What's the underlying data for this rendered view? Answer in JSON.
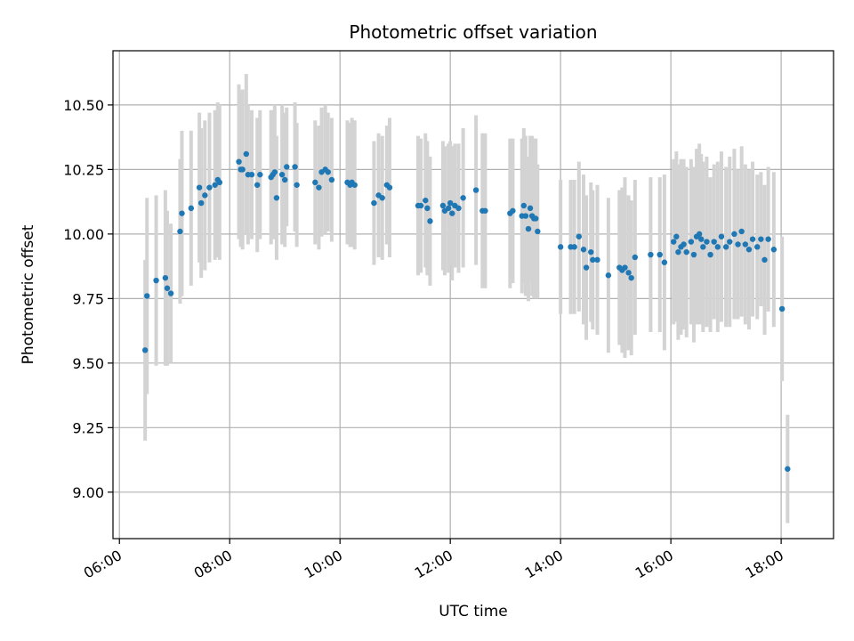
{
  "chart_data": {
    "type": "scatter",
    "title": "Photometric offset variation",
    "xlabel": "UTC time",
    "ylabel": "Photometric offset",
    "xlim": [
      "05:53",
      "18:57"
    ],
    "ylim": [
      8.82,
      10.71
    ],
    "x_ticks": [
      "06:00",
      "08:00",
      "10:00",
      "12:00",
      "14:00",
      "16:00",
      "18:00"
    ],
    "y_ticks": [
      "9.00",
      "9.25",
      "9.50",
      "9.75",
      "10.00",
      "10.25",
      "10.50"
    ],
    "grid": true,
    "colors": {
      "points": "#1f77b4",
      "errorbars": "#d3d3d3",
      "grid": "#b0b0b0"
    },
    "series": [
      {
        "x": [
          "06:28",
          "06:30",
          "06:40",
          "06:50",
          "06:52",
          "06:56",
          "07:06",
          "07:08",
          "07:18",
          "07:27",
          "07:29",
          "07:33",
          "07:38",
          "07:44",
          "07:47",
          "07:49",
          "08:10",
          "08:12",
          "08:14",
          "08:18",
          "08:20",
          "08:24",
          "08:30",
          "08:33",
          "08:45",
          "08:47",
          "08:49",
          "08:51",
          "08:57",
          "09:00",
          "09:02",
          "09:11",
          "09:13",
          "09:33",
          "09:37",
          "09:40",
          "09:44",
          "09:47",
          "09:51",
          "10:08",
          "10:11",
          "10:13",
          "10:16",
          "10:37",
          "10:42",
          "10:46",
          "10:51",
          "10:54",
          "11:25",
          "11:28",
          "11:33",
          "11:35",
          "11:38",
          "11:52",
          "11:54",
          "11:58",
          "12:00",
          "12:02",
          "12:05",
          "12:09",
          "12:14",
          "12:28",
          "12:35",
          "12:38",
          "13:05",
          "13:08",
          "13:18",
          "13:20",
          "13:22",
          "13:25",
          "13:27",
          "13:29",
          "13:31",
          "13:33",
          "13:35",
          "14:00",
          "14:11",
          "14:15",
          "14:20",
          "14:25",
          "14:28",
          "14:33",
          "14:35",
          "14:40",
          "14:52",
          "15:04",
          "15:07",
          "15:10",
          "15:14",
          "15:17",
          "15:21",
          "15:38",
          "15:48",
          "15:53",
          "16:03",
          "16:06",
          "16:08",
          "16:11",
          "16:14",
          "16:17",
          "16:22",
          "16:25",
          "16:28",
          "16:31",
          "16:33",
          "16:35",
          "16:39",
          "16:43",
          "16:47",
          "16:51",
          "16:55",
          "17:00",
          "17:04",
          "17:09",
          "17:13",
          "17:17",
          "17:21",
          "17:25",
          "17:29",
          "17:34",
          "17:38",
          "17:42",
          "17:46",
          "17:52",
          "18:01",
          "18:07"
        ],
        "y": [
          9.55,
          9.76,
          9.82,
          9.83,
          9.79,
          9.77,
          10.01,
          10.08,
          10.1,
          10.18,
          10.12,
          10.15,
          10.18,
          10.19,
          10.21,
          10.2,
          10.28,
          10.25,
          10.25,
          10.31,
          10.23,
          10.23,
          10.19,
          10.23,
          10.22,
          10.23,
          10.24,
          10.14,
          10.23,
          10.21,
          10.26,
          10.26,
          10.19,
          10.2,
          10.18,
          10.24,
          10.25,
          10.24,
          10.21,
          10.2,
          10.19,
          10.2,
          10.19,
          10.12,
          10.15,
          10.14,
          10.19,
          10.18,
          10.11,
          10.11,
          10.13,
          10.1,
          10.05,
          10.11,
          10.09,
          10.1,
          10.12,
          10.08,
          10.11,
          10.1,
          10.14,
          10.17,
          10.09,
          10.09,
          10.08,
          10.09,
          10.07,
          10.11,
          10.07,
          10.02,
          10.1,
          10.07,
          10.06,
          10.06,
          10.01,
          9.95,
          9.95,
          9.95,
          9.99,
          9.94,
          9.87,
          9.93,
          9.9,
          9.9,
          9.84,
          9.87,
          9.86,
          9.87,
          9.85,
          9.83,
          9.91,
          9.92,
          9.92,
          9.89,
          9.97,
          9.99,
          9.93,
          9.95,
          9.96,
          9.93,
          9.97,
          9.92,
          9.99,
          10.0,
          9.98,
          9.95,
          9.97,
          9.92,
          9.97,
          9.95,
          9.99,
          9.95,
          9.97,
          10.0,
          9.96,
          10.01,
          9.96,
          9.94,
          9.98,
          9.95,
          9.98,
          9.9,
          9.98,
          9.94,
          9.71,
          9.09
        ],
        "err": [
          0.35,
          0.38,
          0.33,
          0.34,
          0.3,
          0.27,
          0.28,
          0.32,
          0.3,
          0.29,
          0.29,
          0.29,
          0.29,
          0.29,
          0.3,
          0.3,
          0.3,
          0.3,
          0.31,
          0.31,
          0.27,
          0.25,
          0.26,
          0.25,
          0.26,
          0.25,
          0.26,
          0.24,
          0.27,
          0.26,
          0.23,
          0.25,
          0.24,
          0.24,
          0.24,
          0.25,
          0.25,
          0.23,
          0.24,
          0.24,
          0.24,
          0.25,
          0.25,
          0.24,
          0.24,
          0.24,
          0.23,
          0.27,
          0.27,
          0.26,
          0.26,
          0.26,
          0.25,
          0.25,
          0.25,
          0.25,
          0.24,
          0.26,
          0.24,
          0.25,
          0.27,
          0.29,
          0.3,
          0.3,
          0.29,
          0.28,
          0.3,
          0.3,
          0.31,
          0.28,
          0.28,
          0.31,
          0.31,
          0.31,
          0.26,
          0.26,
          0.26,
          0.26,
          0.29,
          0.29,
          0.28,
          0.27,
          0.27,
          0.29,
          0.3,
          0.3,
          0.32,
          0.35,
          0.3,
          0.3,
          0.3,
          0.3,
          0.3,
          0.34,
          0.32,
          0.33,
          0.34,
          0.34,
          0.33,
          0.33,
          0.32,
          0.34,
          0.34,
          0.35,
          0.33,
          0.33,
          0.33,
          0.3,
          0.3,
          0.33,
          0.33,
          0.31,
          0.33,
          0.33,
          0.29,
          0.33,
          0.31,
          0.31,
          0.3,
          0.28,
          0.26,
          0.29,
          0.28,
          0.3,
          0.28,
          0.21
        ]
      }
    ]
  }
}
